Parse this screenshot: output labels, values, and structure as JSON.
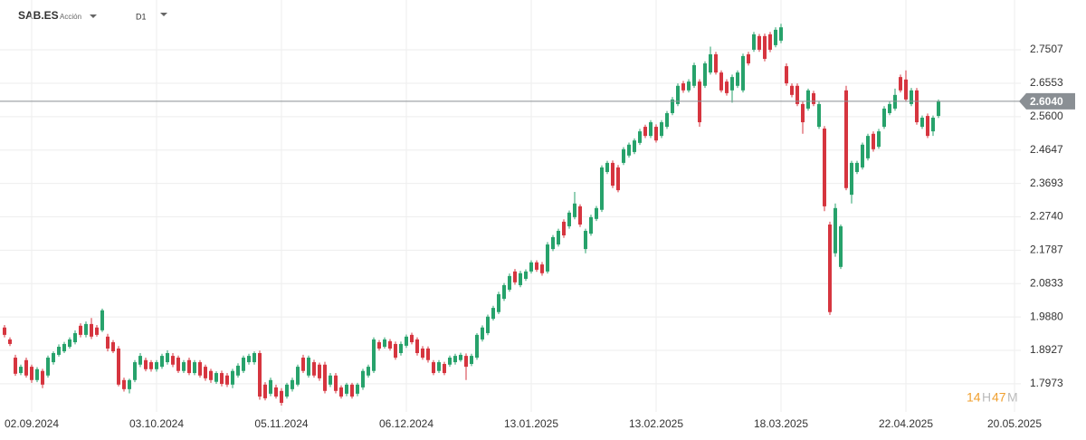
{
  "header": {
    "symbol": "SAB.ES",
    "instrument_type": "Acción",
    "timeframe": "D1",
    "timer": [
      "14",
      "H",
      "47",
      "M"
    ]
  },
  "chart_data": {
    "type": "candlestick",
    "x": [
      "26.08.2024",
      "27.08.2024",
      "28.08.2024",
      "29.08.2024",
      "30.08.2024",
      "02.09.2024",
      "03.09.2024",
      "04.09.2024",
      "05.09.2024",
      "06.09.2024",
      "09.09.2024",
      "10.09.2024",
      "11.09.2024",
      "12.09.2024",
      "13.09.2024",
      "16.09.2024",
      "17.09.2024",
      "18.09.2024",
      "19.09.2024",
      "20.09.2024",
      "23.09.2024",
      "24.09.2024",
      "25.09.2024",
      "26.09.2024",
      "27.09.2024",
      "30.09.2024",
      "01.10.2024",
      "02.10.2024",
      "03.10.2024",
      "04.10.2024",
      "07.10.2024",
      "08.10.2024",
      "09.10.2024",
      "10.10.2024",
      "11.10.2024",
      "14.10.2024",
      "15.10.2024",
      "16.10.2024",
      "17.10.2024",
      "18.10.2024",
      "21.10.2024",
      "22.10.2024",
      "23.10.2024",
      "24.10.2024",
      "25.10.2024",
      "28.10.2024",
      "29.10.2024",
      "30.10.2024",
      "31.10.2024",
      "01.11.2024",
      "04.11.2024",
      "05.11.2024",
      "06.11.2024",
      "07.11.2024",
      "08.11.2024",
      "11.11.2024",
      "12.11.2024",
      "13.11.2024",
      "14.11.2024",
      "15.11.2024",
      "18.11.2024",
      "19.11.2024",
      "20.11.2024",
      "21.11.2024",
      "22.11.2024",
      "25.11.2024",
      "26.11.2024",
      "27.11.2024",
      "28.11.2024",
      "29.11.2024",
      "02.12.2024",
      "03.12.2024",
      "04.12.2024",
      "05.12.2024",
      "06.12.2024",
      "09.12.2024",
      "10.12.2024",
      "11.12.2024",
      "12.12.2024",
      "13.12.2024",
      "16.12.2024",
      "17.12.2024",
      "18.12.2024",
      "19.12.2024",
      "20.12.2024",
      "23.12.2024",
      "24.12.2024",
      "27.12.2024",
      "30.12.2024",
      "31.12.2024",
      "02.01.2025",
      "03.01.2025",
      "06.01.2025",
      "07.01.2025",
      "08.01.2025",
      "09.01.2025",
      "10.01.2025",
      "13.01.2025",
      "14.01.2025",
      "15.01.2025",
      "16.01.2025",
      "17.01.2025",
      "20.01.2025",
      "21.01.2025",
      "22.01.2025",
      "23.01.2025",
      "24.01.2025",
      "27.01.2025",
      "28.01.2025",
      "29.01.2025",
      "30.01.2025",
      "31.01.2025",
      "03.02.2025",
      "04.02.2025",
      "05.02.2025",
      "06.02.2025",
      "07.02.2025",
      "10.02.2025",
      "11.02.2025",
      "12.02.2025",
      "13.02.2025",
      "14.02.2025",
      "17.02.2025",
      "18.02.2025",
      "19.02.2025",
      "20.02.2025",
      "21.02.2025",
      "24.02.2025",
      "25.02.2025",
      "26.02.2025",
      "27.02.2025",
      "28.02.2025",
      "03.03.2025",
      "04.03.2025",
      "05.03.2025",
      "06.03.2025",
      "07.03.2025",
      "10.03.2025",
      "11.03.2025",
      "12.03.2025",
      "13.03.2025",
      "14.03.2025",
      "17.03.2025",
      "18.03.2025",
      "19.03.2025",
      "20.03.2025",
      "21.03.2025",
      "24.03.2025",
      "25.03.2025",
      "26.03.2025",
      "27.03.2025",
      "28.03.2025",
      "31.03.2025",
      "01.04.2025",
      "02.04.2025",
      "03.04.2025",
      "04.04.2025",
      "07.04.2025",
      "08.04.2025",
      "09.04.2025",
      "10.04.2025",
      "11.04.2025",
      "14.04.2025",
      "15.04.2025",
      "16.04.2025",
      "17.04.2025",
      "22.04.2025",
      "23.04.2025",
      "24.04.2025",
      "25.04.2025",
      "28.04.2025",
      "29.04.2025",
      "30.04.2025"
    ],
    "values": [
      [
        1.958,
        1.965,
        1.93,
        1.937
      ],
      [
        1.924,
        1.93,
        1.905,
        1.911
      ],
      [
        1.872,
        1.88,
        1.82,
        1.826
      ],
      [
        1.828,
        1.852,
        1.822,
        1.846
      ],
      [
        1.865,
        1.872,
        1.815,
        1.821
      ],
      [
        1.846,
        1.852,
        1.8,
        1.808
      ],
      [
        1.808,
        1.845,
        1.802,
        1.839
      ],
      [
        1.834,
        1.84,
        1.785,
        1.795
      ],
      [
        1.821,
        1.878,
        1.815,
        1.872
      ],
      [
        1.859,
        1.89,
        1.852,
        1.885
      ],
      [
        1.88,
        1.91,
        1.875,
        1.903
      ],
      [
        1.89,
        1.917,
        1.885,
        1.911
      ],
      [
        1.903,
        1.93,
        1.898,
        1.924
      ],
      [
        1.916,
        1.95,
        1.91,
        1.942
      ],
      [
        1.963,
        1.97,
        1.93,
        1.937
      ],
      [
        1.937,
        1.975,
        1.93,
        1.968
      ],
      [
        1.968,
        1.985,
        1.925,
        1.932
      ],
      [
        1.958,
        1.965,
        1.932,
        1.937
      ],
      [
        1.95,
        2.012,
        1.945,
        2.007
      ],
      [
        1.932,
        1.94,
        1.89,
        1.898
      ],
      [
        1.916,
        1.922,
        1.885,
        1.89
      ],
      [
        1.898,
        1.905,
        1.79,
        1.795
      ],
      [
        1.808,
        1.815,
        1.775,
        1.782
      ],
      [
        1.782,
        1.812,
        1.77,
        1.808
      ],
      [
        1.808,
        1.865,
        1.802,
        1.859
      ],
      [
        1.852,
        1.885,
        1.845,
        1.877
      ],
      [
        1.865,
        1.872,
        1.833,
        1.839
      ],
      [
        1.859,
        1.865,
        1.832,
        1.839
      ],
      [
        1.839,
        1.865,
        1.832,
        1.859
      ],
      [
        1.846,
        1.883,
        1.84,
        1.877
      ],
      [
        1.859,
        1.893,
        1.852,
        1.885
      ],
      [
        1.877,
        1.885,
        1.845,
        1.852
      ],
      [
        1.872,
        1.878,
        1.828,
        1.834
      ],
      [
        1.834,
        1.865,
        1.828,
        1.859
      ],
      [
        1.865,
        1.872,
        1.822,
        1.828
      ],
      [
        1.828,
        1.865,
        1.822,
        1.859
      ],
      [
        1.859,
        1.865,
        1.815,
        1.821
      ],
      [
        1.846,
        1.852,
        1.806,
        1.813
      ],
      [
        1.834,
        1.84,
        1.8,
        1.808
      ],
      [
        1.803,
        1.833,
        1.797,
        1.828
      ],
      [
        1.828,
        1.835,
        1.79,
        1.797
      ],
      [
        1.821,
        1.828,
        1.788,
        1.795
      ],
      [
        1.795,
        1.84,
        1.785,
        1.834
      ],
      [
        1.821,
        1.856,
        1.815,
        1.849
      ],
      [
        1.834,
        1.878,
        1.828,
        1.872
      ],
      [
        1.859,
        1.883,
        1.852,
        1.877
      ],
      [
        1.859,
        1.89,
        1.852,
        1.885
      ],
      [
        1.885,
        1.892,
        1.752,
        1.761
      ],
      [
        1.795,
        1.802,
        1.75,
        1.756
      ],
      [
        1.769,
        1.815,
        1.762,
        1.808
      ],
      [
        1.787,
        1.795,
        1.755,
        1.761
      ],
      [
        1.777,
        1.785,
        1.735,
        1.743
      ],
      [
        1.761,
        1.8,
        1.755,
        1.795
      ],
      [
        1.782,
        1.815,
        1.775,
        1.808
      ],
      [
        1.795,
        1.852,
        1.79,
        1.846
      ],
      [
        1.872,
        1.88,
        1.828,
        1.834
      ],
      [
        1.821,
        1.878,
        1.815,
        1.872
      ],
      [
        1.859,
        1.866,
        1.815,
        1.821
      ],
      [
        1.852,
        1.858,
        1.806,
        1.813
      ],
      [
        1.852,
        1.86,
        1.77,
        1.777
      ],
      [
        1.795,
        1.828,
        1.788,
        1.821
      ],
      [
        1.821,
        1.828,
        1.77,
        1.777
      ],
      [
        1.787,
        1.793,
        1.755,
        1.761
      ],
      [
        1.769,
        1.8,
        1.762,
        1.795
      ],
      [
        1.795,
        1.8,
        1.755,
        1.761
      ],
      [
        1.769,
        1.8,
        1.762,
        1.795
      ],
      [
        1.787,
        1.84,
        1.78,
        1.834
      ],
      [
        1.821,
        1.852,
        1.815,
        1.846
      ],
      [
        1.834,
        1.93,
        1.828,
        1.924
      ],
      [
        1.916,
        1.922,
        1.892,
        1.898
      ],
      [
        1.903,
        1.93,
        1.898,
        1.924
      ],
      [
        1.919,
        1.925,
        1.892,
        1.898
      ],
      [
        1.911,
        1.918,
        1.866,
        1.872
      ],
      [
        1.885,
        1.918,
        1.878,
        1.911
      ],
      [
        1.906,
        1.938,
        1.9,
        1.932
      ],
      [
        1.937,
        1.943,
        1.91,
        1.916
      ],
      [
        1.924,
        1.93,
        1.878,
        1.885
      ],
      [
        1.898,
        1.905,
        1.866,
        1.872
      ],
      [
        1.898,
        1.904,
        1.858,
        1.865
      ],
      [
        1.859,
        1.865,
        1.822,
        1.828
      ],
      [
        1.834,
        1.865,
        1.828,
        1.859
      ],
      [
        1.854,
        1.86,
        1.822,
        1.828
      ],
      [
        1.852,
        1.878,
        1.846,
        1.872
      ],
      [
        1.859,
        1.883,
        1.852,
        1.877
      ],
      [
        1.865,
        1.886,
        1.86,
        1.88
      ],
      [
        1.877,
        1.884,
        1.808,
        1.846
      ],
      [
        1.854,
        1.883,
        1.848,
        1.877
      ],
      [
        1.872,
        1.942,
        1.866,
        1.937
      ],
      [
        1.924,
        1.964,
        1.918,
        1.958
      ],
      [
        1.942,
        1.995,
        1.936,
        1.989
      ],
      [
        1.983,
        2.02,
        1.978,
        2.014
      ],
      [
        2.002,
        2.06,
        1.996,
        2.053
      ],
      [
        2.04,
        2.085,
        2.034,
        2.079
      ],
      [
        2.066,
        2.112,
        2.06,
        2.105
      ],
      [
        2.118,
        2.125,
        2.08,
        2.087
      ],
      [
        2.079,
        2.12,
        2.073,
        2.113
      ],
      [
        2.097,
        2.124,
        2.091,
        2.118
      ],
      [
        2.118,
        2.15,
        2.112,
        2.144
      ],
      [
        2.144,
        2.15,
        2.117,
        2.123
      ],
      [
        2.138,
        2.145,
        2.106,
        2.113
      ],
      [
        2.118,
        2.202,
        2.112,
        2.195
      ],
      [
        2.182,
        2.222,
        2.176,
        2.216
      ],
      [
        2.195,
        2.24,
        2.189,
        2.234
      ],
      [
        2.26,
        2.267,
        2.214,
        2.221
      ],
      [
        2.247,
        2.292,
        2.24,
        2.286
      ],
      [
        2.273,
        2.345,
        2.267,
        2.312
      ],
      [
        2.304,
        2.31,
        2.245,
        2.252
      ],
      [
        2.182,
        2.24,
        2.17,
        2.234
      ],
      [
        2.226,
        2.28,
        2.22,
        2.273
      ],
      [
        2.268,
        2.305,
        2.262,
        2.299
      ],
      [
        2.294,
        2.421,
        2.288,
        2.415
      ],
      [
        2.402,
        2.434,
        2.396,
        2.428
      ],
      [
        2.428,
        2.435,
        2.356,
        2.363
      ],
      [
        2.415,
        2.422,
        2.344,
        2.35
      ],
      [
        2.428,
        2.473,
        2.422,
        2.467
      ],
      [
        2.449,
        2.486,
        2.443,
        2.48
      ],
      [
        2.459,
        2.498,
        2.453,
        2.492
      ],
      [
        2.485,
        2.525,
        2.479,
        2.518
      ],
      [
        2.531,
        2.537,
        2.499,
        2.505
      ],
      [
        2.505,
        2.55,
        2.499,
        2.544
      ],
      [
        2.531,
        2.538,
        2.486,
        2.492
      ],
      [
        2.505,
        2.55,
        2.499,
        2.544
      ],
      [
        2.531,
        2.576,
        2.525,
        2.57
      ],
      [
        2.57,
        2.616,
        2.564,
        2.609
      ],
      [
        2.596,
        2.655,
        2.59,
        2.648
      ],
      [
        2.655,
        2.662,
        2.628,
        2.635
      ],
      [
        2.635,
        2.667,
        2.629,
        2.66
      ],
      [
        2.648,
        2.714,
        2.642,
        2.707
      ],
      [
        2.66,
        2.667,
        2.531,
        2.544
      ],
      [
        2.648,
        2.718,
        2.642,
        2.712
      ],
      [
        2.686,
        2.76,
        2.68,
        2.738
      ],
      [
        2.738,
        2.745,
        2.68,
        2.686
      ],
      [
        2.686,
        2.692,
        2.629,
        2.635
      ],
      [
        2.66,
        2.667,
        2.62,
        2.627
      ],
      [
        2.635,
        2.68,
        2.6,
        2.673
      ],
      [
        2.648,
        2.692,
        2.642,
        2.686
      ],
      [
        2.635,
        2.74,
        2.629,
        2.733
      ],
      [
        2.738,
        2.745,
        2.706,
        2.712
      ],
      [
        2.751,
        2.802,
        2.745,
        2.795
      ],
      [
        2.79,
        2.796,
        2.745,
        2.751
      ],
      [
        2.79,
        2.797,
        2.718,
        2.725
      ],
      [
        2.795,
        2.802,
        2.744,
        2.751
      ],
      [
        2.764,
        2.815,
        2.758,
        2.808
      ],
      [
        2.777,
        2.825,
        2.77,
        2.815
      ],
      [
        2.704,
        2.712,
        2.648,
        2.655
      ],
      [
        2.648,
        2.655,
        2.615,
        2.622
      ],
      [
        2.648,
        2.655,
        2.59,
        2.596
      ],
      [
        2.596,
        2.603,
        2.511,
        2.544
      ],
      [
        2.583,
        2.64,
        2.577,
        2.635
      ],
      [
        2.627,
        2.634,
        2.59,
        2.596
      ],
      [
        2.531,
        2.603,
        2.525,
        2.596
      ],
      [
        2.526,
        2.533,
        2.29,
        2.304
      ],
      [
        2.252,
        2.26,
        1.994,
        2.002
      ],
      [
        2.17,
        2.312,
        2.16,
        2.299
      ],
      [
        2.131,
        2.252,
        2.125,
        2.247
      ],
      [
        2.635,
        2.648,
        2.35,
        2.356
      ],
      [
        2.337,
        2.434,
        2.312,
        2.428
      ],
      [
        2.402,
        2.434,
        2.396,
        2.428
      ],
      [
        2.415,
        2.486,
        2.409,
        2.48
      ],
      [
        2.441,
        2.511,
        2.435,
        2.505
      ],
      [
        2.511,
        2.518,
        2.46,
        2.467
      ],
      [
        2.474,
        2.525,
        2.468,
        2.518
      ],
      [
        2.531,
        2.59,
        2.525,
        2.583
      ],
      [
        2.57,
        2.603,
        2.564,
        2.596
      ],
      [
        2.583,
        2.64,
        2.577,
        2.622
      ],
      [
        2.673,
        2.68,
        2.629,
        2.635
      ],
      [
        2.666,
        2.692,
        2.603,
        2.609
      ],
      [
        2.596,
        2.642,
        2.59,
        2.635
      ],
      [
        2.635,
        2.642,
        2.537,
        2.544
      ],
      [
        2.531,
        2.563,
        2.525,
        2.557
      ],
      [
        2.562,
        2.569,
        2.499,
        2.505
      ],
      [
        2.518,
        2.563,
        2.505,
        2.557
      ],
      [
        2.562,
        2.609,
        2.556,
        2.604
      ]
    ],
    "up_color": "#27a26b",
    "down_color": "#d6353f",
    "ylim": [
      1.717,
      2.893
    ],
    "yticks": [
      1.7973,
      1.8927,
      {
        "value": 1.988,
        "label": "1.9880"
      },
      2.0833,
      2.1787,
      {
        "value": 2.274,
        "label": "2.2740"
      },
      2.3693,
      2.4647,
      {
        "value": 2.56,
        "label": "2.5600"
      },
      2.6553,
      2.7507
    ],
    "xticks": [
      "02.09.2024",
      "03.10.2024",
      "05.11.2024",
      "06.12.2024",
      "13.01.2025",
      "13.02.2025",
      "18.03.2025",
      "22.04.2025",
      "20.05.2025"
    ],
    "grid": true,
    "last_price": {
      "value": 2.604,
      "label": "2.6040"
    }
  }
}
